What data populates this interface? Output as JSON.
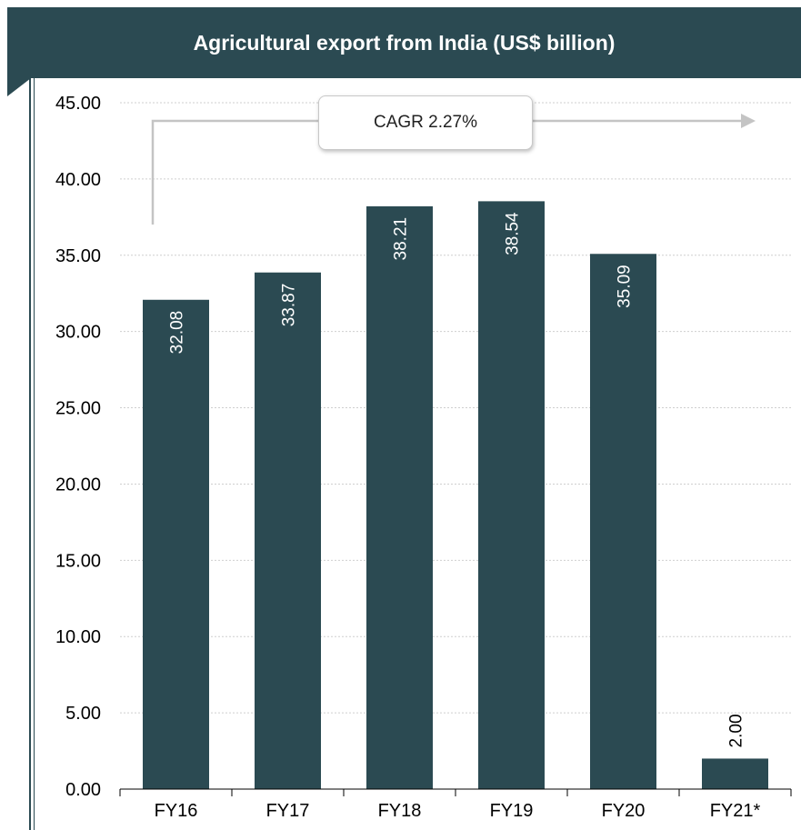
{
  "title": "Agricultural export from India (US$ billion)",
  "cagr_label": "CAGR 2.27%",
  "colors": {
    "header": "#2b4a52",
    "bar": "#2b4a52",
    "grid": "#cfcfcf",
    "arrow": "#c4c4c4",
    "label_inside": "#ffffff",
    "label_outside": "#000000"
  },
  "chart_data": {
    "type": "bar",
    "title": "Agricultural export from India (US$ billion)",
    "xlabel": "",
    "ylabel": "",
    "categories": [
      "FY16",
      "FY17",
      "FY18",
      "FY19",
      "FY20",
      "FY21*"
    ],
    "values": [
      32.08,
      33.87,
      38.21,
      38.54,
      35.09,
      2.0
    ],
    "value_labels": [
      "32.08",
      "33.87",
      "38.21",
      "38.54",
      "35.09",
      "2.00"
    ],
    "ylim": [
      0,
      45
    ],
    "yticks": [
      0,
      5,
      10,
      15,
      20,
      25,
      30,
      35,
      40,
      45
    ],
    "ytick_labels": [
      "0.00",
      "5.00",
      "10.00",
      "15.00",
      "20.00",
      "25.00",
      "30.00",
      "35.00",
      "40.00",
      "45.00"
    ],
    "grid": true,
    "legend": "none",
    "annotation": "CAGR 2.27%"
  }
}
